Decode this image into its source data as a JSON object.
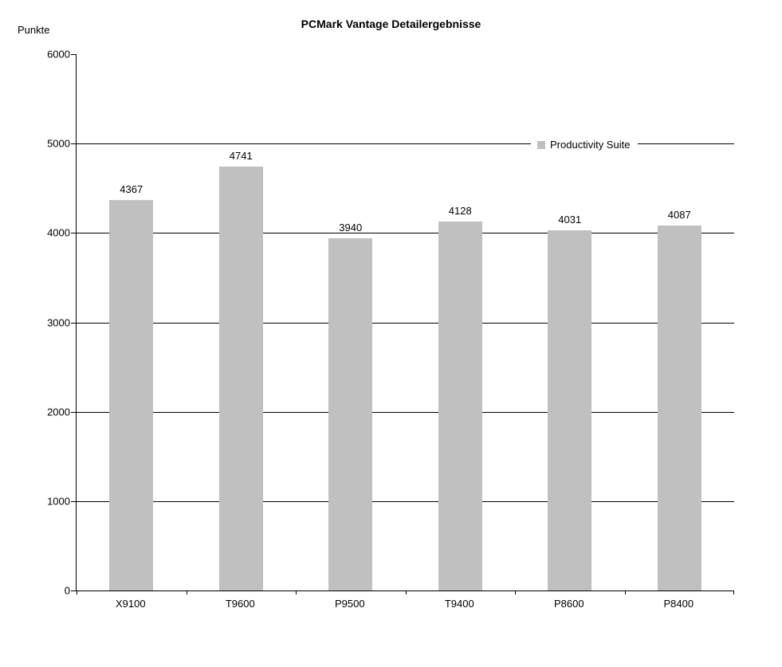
{
  "title": "PCMark Vantage Detailergebnisse",
  "y_axis_label": "Punkte",
  "legend": {
    "label": "Productivity Suite"
  },
  "colors": {
    "bar": "#c0c0c0",
    "axis": "#000000",
    "text": "#000000",
    "background": "#ffffff"
  },
  "chart_data": {
    "type": "bar",
    "title": "PCMark Vantage Detailergebnisse",
    "categories": [
      "X9100",
      "T9600",
      "P9500",
      "T9400",
      "P8600",
      "P8400"
    ],
    "series": [
      {
        "name": "Productivity Suite",
        "values": [
          4367,
          4741,
          3940,
          4128,
          4031,
          4087
        ]
      }
    ],
    "xlabel": "",
    "ylabel": "Punkte",
    "ylim": [
      0,
      6000
    ],
    "ytick_interval": 1000,
    "grid": true,
    "legend_position": "inside-top-right",
    "bar_color": "#c0c0c0",
    "data_labels": true
  }
}
